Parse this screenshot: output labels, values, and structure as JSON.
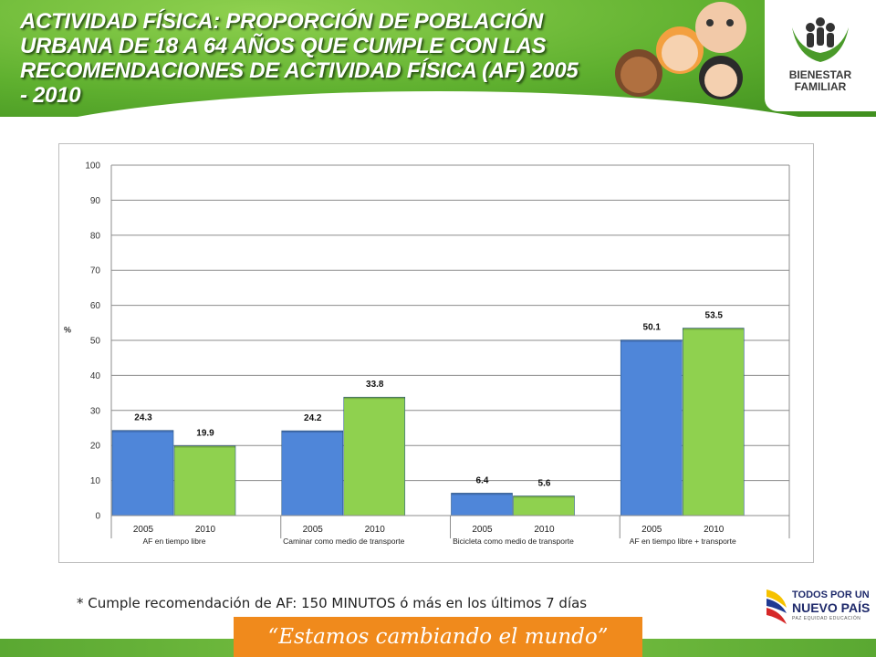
{
  "header": {
    "title": "ACTIVIDAD FÍSICA: PROPORCIÓN DE POBLACIÓN URBANA DE 18 A 64 AÑOS QUE CUMPLE CON LAS  RECOMENDACIONES DE ACTIVIDAD FÍSICA (AF)  2005 - 2010",
    "logo_line1": "BIENESTAR",
    "logo_line2": "FAMILIAR"
  },
  "colors": {
    "bar_2005": "#4f86d9",
    "bar_2010": "#8fd14f",
    "grid": "#8c8c8c"
  },
  "chart_data": {
    "type": "bar",
    "title": "",
    "ylabel": "%",
    "ylim": [
      0,
      100
    ],
    "yticks": [
      "0",
      "10",
      "20",
      "30",
      "40",
      "50",
      "60",
      "70",
      "80",
      "90",
      "100"
    ],
    "groups": [
      {
        "label": "AF en tiempo libre",
        "years": [
          "2005",
          "2010"
        ],
        "values": [
          24.3,
          19.9
        ],
        "labels": [
          "24.3",
          "19.9"
        ]
      },
      {
        "label": "Caminar como medio de transporte",
        "years": [
          "2005",
          "2010"
        ],
        "values": [
          24.2,
          33.8
        ],
        "labels": [
          "24.2",
          "33.8"
        ]
      },
      {
        "label": "Bicicleta como medio de transporte",
        "years": [
          "2005",
          "2010"
        ],
        "values": [
          6.4,
          5.6
        ],
        "labels": [
          "6.4",
          "5.6"
        ]
      },
      {
        "label": "AF en tiempo libre + transporte",
        "years": [
          "2005",
          "2010"
        ],
        "values": [
          50.1,
          53.5
        ],
        "labels": [
          "50.1",
          "53.5"
        ]
      }
    ],
    "grid": true,
    "legend": "none"
  },
  "footnote": "* Cumple recomendación de AF: 150 MINUTOS ó más en los últimos 7 días",
  "slogan": "“Estamos cambiando el mundo”",
  "gov": {
    "line1": "TODOS POR UN",
    "line2": "NUEVO PAÍS",
    "line3": "PAZ  EQUIDAD  EDUCACIÓN"
  }
}
